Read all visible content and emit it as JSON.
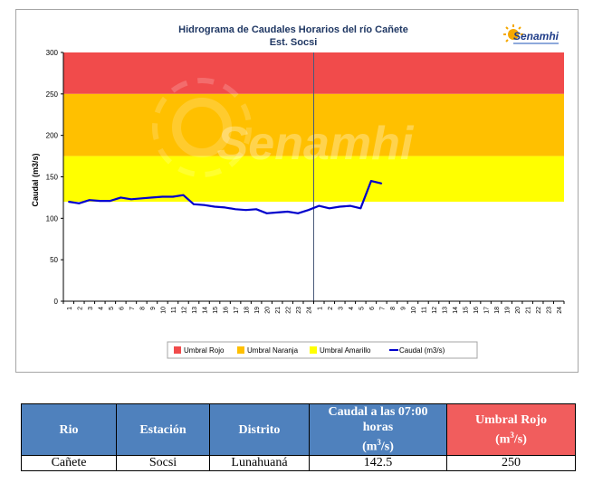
{
  "chart_data": {
    "type": "line",
    "title": "Hidrograma  de Caudales Horarios  del río Cañete",
    "subtitle": "Est. Socsi",
    "ylabel": "Caudal  (m3/s)",
    "ylim": [
      0,
      300
    ],
    "yticks": [
      0,
      50,
      100,
      150,
      200,
      250,
      300
    ],
    "x_tick_labels": [
      "1",
      "2",
      "3",
      "4",
      "5",
      "6",
      "7",
      "8",
      "9",
      "10",
      "11",
      "12",
      "13",
      "14",
      "15",
      "16",
      "17",
      "18",
      "19",
      "20",
      "21",
      "22",
      "23",
      "24",
      "1",
      "2",
      "3",
      "4",
      "5",
      "6",
      "7",
      "8",
      "9",
      "10",
      "11",
      "12",
      "13",
      "14",
      "15",
      "16",
      "17",
      "18",
      "19",
      "20",
      "21",
      "22",
      "23",
      "24"
    ],
    "bands": [
      {
        "name": "Umbral Rojo",
        "from": 250,
        "to": 300,
        "color": "#f14b4b"
      },
      {
        "name": "Umbral Naranja",
        "from": 175,
        "to": 250,
        "color": "#ffc000"
      },
      {
        "name": "Umbral Amarillo",
        "from": 120,
        "to": 175,
        "color": "#ffff00"
      }
    ],
    "series": [
      {
        "name": "Caudal (m3/s)",
        "color": "#0000cc",
        "values": [
          120,
          118,
          122,
          121,
          121,
          125,
          123,
          124,
          125,
          126,
          126,
          128,
          117,
          116,
          114,
          113,
          111,
          110,
          111,
          106,
          107,
          108,
          106,
          110,
          115,
          112,
          114,
          115,
          112,
          145,
          142
        ]
      }
    ],
    "legend_position": "bottom"
  },
  "logo": {
    "text": "Senamhi"
  },
  "watermark": {
    "text": "Senamhi"
  },
  "table": {
    "headers": {
      "rio": "Rio",
      "estacion": "Estación",
      "distrito": "Distrito",
      "caudal": "Caudal a las 07:00 horas",
      "caudal_unit_open": "(m",
      "caudal_unit_sup": "3",
      "caudal_unit_close": "/s)",
      "umbral": "Umbral Rojo",
      "umbral_unit_open": "(m",
      "umbral_unit_sup": "3",
      "umbral_unit_close": "/s)"
    },
    "row": {
      "rio": "Cañete",
      "estacion": "Socsi",
      "distrito": "Lunahuaná",
      "caudal": "142.5",
      "umbral": "250"
    }
  },
  "colors": {
    "header_blue": "#4f81bd",
    "header_red": "#f15d5d"
  }
}
